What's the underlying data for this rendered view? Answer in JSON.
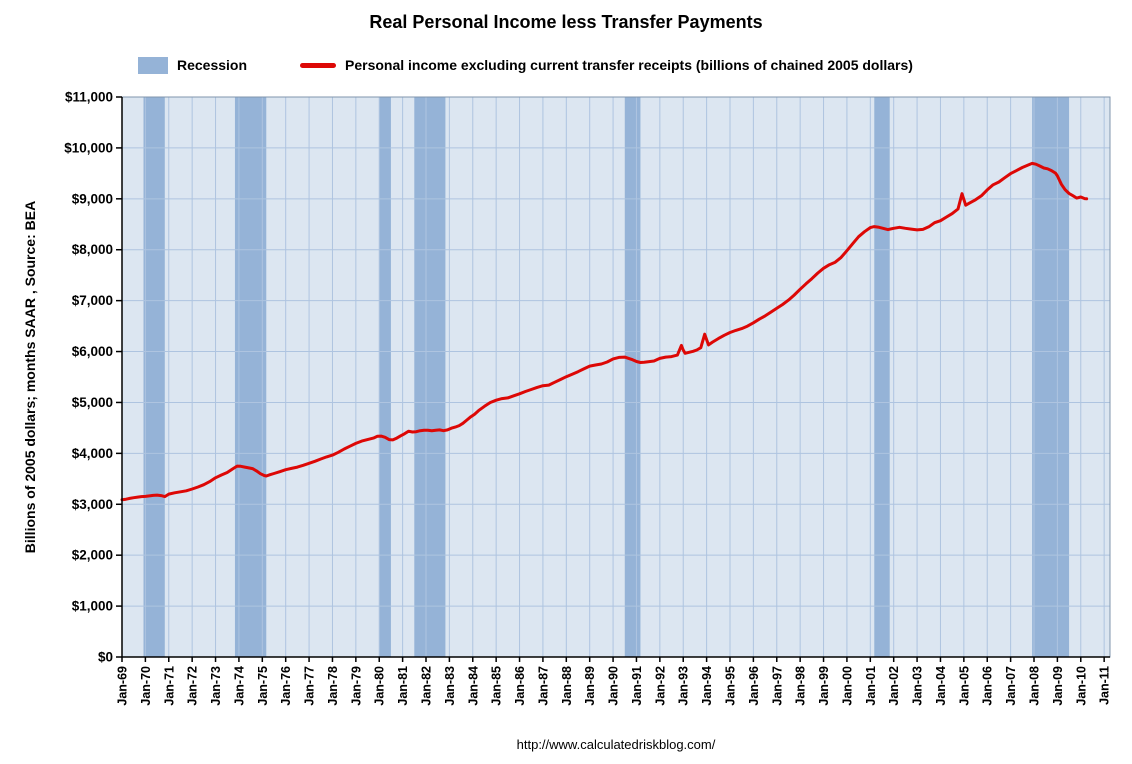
{
  "chart_data": {
    "type": "line",
    "title": "Real Personal Income less Transfer Payments",
    "xlabel": "",
    "ylabel": "Billions of 2005 dollars; months SAAR , Source: BEA",
    "footer_url": "http://www.calculatedriskblog.com/",
    "xlim": [
      1969,
      2011.25
    ],
    "ylim": [
      0,
      11000
    ],
    "grid": true,
    "legend_position": "top",
    "colors": {
      "plot_bg": "#dce6f1",
      "grid": "#aec4e0",
      "recession": "#95b3d7",
      "border": "#8096ad",
      "axis": "#000000",
      "line": "#dd0806"
    },
    "legend": [
      {
        "label": "Recession",
        "swatch": "area",
        "color": "#95b3d7"
      },
      {
        "label": "Personal income excluding current transfer receipts (billions of chained 2005 dollars)",
        "swatch": "line",
        "color": "#dd0806"
      }
    ],
    "y_ticks": [
      [
        0,
        "$0"
      ],
      [
        1000,
        "$1,000"
      ],
      [
        2000,
        "$2,000"
      ],
      [
        3000,
        "$3,000"
      ],
      [
        4000,
        "$4,000"
      ],
      [
        5000,
        "$5,000"
      ],
      [
        6000,
        "$6,000"
      ],
      [
        7000,
        "$7,000"
      ],
      [
        8000,
        "$8,000"
      ],
      [
        9000,
        "$9,000"
      ],
      [
        10000,
        "$10,000"
      ],
      [
        11000,
        "$11,000"
      ]
    ],
    "x_ticks": [
      [
        1969,
        "Jan-69"
      ],
      [
        1970,
        "Jan-70"
      ],
      [
        1971,
        "Jan-71"
      ],
      [
        1972,
        "Jan-72"
      ],
      [
        1973,
        "Jan-73"
      ],
      [
        1974,
        "Jan-74"
      ],
      [
        1975,
        "Jan-75"
      ],
      [
        1976,
        "Jan-76"
      ],
      [
        1977,
        "Jan-77"
      ],
      [
        1978,
        "Jan-78"
      ],
      [
        1979,
        "Jan-79"
      ],
      [
        1980,
        "Jan-80"
      ],
      [
        1981,
        "Jan-81"
      ],
      [
        1982,
        "Jan-82"
      ],
      [
        1983,
        "Jan-83"
      ],
      [
        1984,
        "Jan-84"
      ],
      [
        1985,
        "Jan-85"
      ],
      [
        1986,
        "Jan-86"
      ],
      [
        1987,
        "Jan-87"
      ],
      [
        1988,
        "Jan-88"
      ],
      [
        1989,
        "Jan-89"
      ],
      [
        1990,
        "Jan-90"
      ],
      [
        1991,
        "Jan-91"
      ],
      [
        1992,
        "Jan-92"
      ],
      [
        1993,
        "Jan-93"
      ],
      [
        1994,
        "Jan-94"
      ],
      [
        1995,
        "Jan-95"
      ],
      [
        1996,
        "Jan-96"
      ],
      [
        1997,
        "Jan-97"
      ],
      [
        1998,
        "Jan-98"
      ],
      [
        1999,
        "Jan-99"
      ],
      [
        2000,
        "Jan-00"
      ],
      [
        2001,
        "Jan-01"
      ],
      [
        2002,
        "Jan-02"
      ],
      [
        2003,
        "Jan-03"
      ],
      [
        2004,
        "Jan-04"
      ],
      [
        2005,
        "Jan-05"
      ],
      [
        2006,
        "Jan-06"
      ],
      [
        2007,
        "Jan-07"
      ],
      [
        2008,
        "Jan-08"
      ],
      [
        2009,
        "Jan-09"
      ],
      [
        2010,
        "Jan-10"
      ],
      [
        2011,
        "Jan-11"
      ]
    ],
    "recessions": [
      [
        1969.92,
        1970.83
      ],
      [
        1973.83,
        1975.17
      ],
      [
        1980.0,
        1980.5
      ],
      [
        1981.5,
        1982.83
      ],
      [
        1990.5,
        1991.17
      ],
      [
        2001.17,
        2001.83
      ],
      [
        2007.92,
        2009.5
      ]
    ],
    "series": [
      {
        "name": "Personal income excluding current transfer receipts (billions of chained 2005 dollars)",
        "color": "#dd0806",
        "points": [
          [
            1969.0,
            3090
          ],
          [
            1969.17,
            3100
          ],
          [
            1969.33,
            3115
          ],
          [
            1969.5,
            3130
          ],
          [
            1969.67,
            3140
          ],
          [
            1969.83,
            3150
          ],
          [
            1970.0,
            3155
          ],
          [
            1970.17,
            3165
          ],
          [
            1970.33,
            3175
          ],
          [
            1970.5,
            3180
          ],
          [
            1970.67,
            3170
          ],
          [
            1970.83,
            3150
          ],
          [
            1971.0,
            3200
          ],
          [
            1971.25,
            3225
          ],
          [
            1971.5,
            3245
          ],
          [
            1971.75,
            3265
          ],
          [
            1972.0,
            3300
          ],
          [
            1972.25,
            3340
          ],
          [
            1972.5,
            3385
          ],
          [
            1972.75,
            3445
          ],
          [
            1973.0,
            3520
          ],
          [
            1973.25,
            3575
          ],
          [
            1973.5,
            3625
          ],
          [
            1973.75,
            3700
          ],
          [
            1973.92,
            3750
          ],
          [
            1974.08,
            3745
          ],
          [
            1974.25,
            3730
          ],
          [
            1974.42,
            3715
          ],
          [
            1974.58,
            3700
          ],
          [
            1974.75,
            3655
          ],
          [
            1974.92,
            3600
          ],
          [
            1975.08,
            3565
          ],
          [
            1975.17,
            3555
          ],
          [
            1975.33,
            3580
          ],
          [
            1975.5,
            3605
          ],
          [
            1975.75,
            3640
          ],
          [
            1976.0,
            3680
          ],
          [
            1976.25,
            3705
          ],
          [
            1976.5,
            3730
          ],
          [
            1976.75,
            3765
          ],
          [
            1977.0,
            3805
          ],
          [
            1977.25,
            3845
          ],
          [
            1977.5,
            3890
          ],
          [
            1977.75,
            3930
          ],
          [
            1978.0,
            3965
          ],
          [
            1978.25,
            4020
          ],
          [
            1978.5,
            4085
          ],
          [
            1978.75,
            4140
          ],
          [
            1979.0,
            4195
          ],
          [
            1979.25,
            4240
          ],
          [
            1979.5,
            4270
          ],
          [
            1979.75,
            4300
          ],
          [
            1979.92,
            4335
          ],
          [
            1980.08,
            4340
          ],
          [
            1980.25,
            4315
          ],
          [
            1980.42,
            4270
          ],
          [
            1980.58,
            4265
          ],
          [
            1980.75,
            4300
          ],
          [
            1980.92,
            4345
          ],
          [
            1981.08,
            4385
          ],
          [
            1981.25,
            4435
          ],
          [
            1981.42,
            4420
          ],
          [
            1981.58,
            4425
          ],
          [
            1981.75,
            4445
          ],
          [
            1981.92,
            4455
          ],
          [
            1982.08,
            4455
          ],
          [
            1982.25,
            4445
          ],
          [
            1982.42,
            4455
          ],
          [
            1982.58,
            4460
          ],
          [
            1982.75,
            4445
          ],
          [
            1982.92,
            4460
          ],
          [
            1983.08,
            4495
          ],
          [
            1983.25,
            4515
          ],
          [
            1983.42,
            4545
          ],
          [
            1983.58,
            4590
          ],
          [
            1983.75,
            4655
          ],
          [
            1983.92,
            4720
          ],
          [
            1984.08,
            4770
          ],
          [
            1984.25,
            4840
          ],
          [
            1984.5,
            4925
          ],
          [
            1984.75,
            5000
          ],
          [
            1985.0,
            5045
          ],
          [
            1985.25,
            5075
          ],
          [
            1985.5,
            5090
          ],
          [
            1985.75,
            5130
          ],
          [
            1986.0,
            5170
          ],
          [
            1986.25,
            5215
          ],
          [
            1986.5,
            5255
          ],
          [
            1986.75,
            5295
          ],
          [
            1987.0,
            5330
          ],
          [
            1987.25,
            5340
          ],
          [
            1987.5,
            5395
          ],
          [
            1987.75,
            5450
          ],
          [
            1988.0,
            5505
          ],
          [
            1988.25,
            5555
          ],
          [
            1988.5,
            5605
          ],
          [
            1988.75,
            5660
          ],
          [
            1989.0,
            5715
          ],
          [
            1989.25,
            5735
          ],
          [
            1989.5,
            5755
          ],
          [
            1989.75,
            5795
          ],
          [
            1990.0,
            5855
          ],
          [
            1990.25,
            5885
          ],
          [
            1990.5,
            5890
          ],
          [
            1990.67,
            5865
          ],
          [
            1990.83,
            5840
          ],
          [
            1991.0,
            5805
          ],
          [
            1991.17,
            5785
          ],
          [
            1991.33,
            5790
          ],
          [
            1991.5,
            5800
          ],
          [
            1991.75,
            5815
          ],
          [
            1992.0,
            5865
          ],
          [
            1992.25,
            5890
          ],
          [
            1992.5,
            5900
          ],
          [
            1992.75,
            5930
          ],
          [
            1992.92,
            6120
          ],
          [
            1993.0,
            6030
          ],
          [
            1993.08,
            5965
          ],
          [
            1993.25,
            5985
          ],
          [
            1993.42,
            6005
          ],
          [
            1993.58,
            6030
          ],
          [
            1993.75,
            6075
          ],
          [
            1993.92,
            6340
          ],
          [
            1994.08,
            6130
          ],
          [
            1994.25,
            6185
          ],
          [
            1994.5,
            6255
          ],
          [
            1994.75,
            6320
          ],
          [
            1995.0,
            6375
          ],
          [
            1995.25,
            6415
          ],
          [
            1995.5,
            6450
          ],
          [
            1995.75,
            6500
          ],
          [
            1996.0,
            6565
          ],
          [
            1996.25,
            6635
          ],
          [
            1996.5,
            6700
          ],
          [
            1996.75,
            6775
          ],
          [
            1997.0,
            6850
          ],
          [
            1997.25,
            6925
          ],
          [
            1997.5,
            7010
          ],
          [
            1997.75,
            7110
          ],
          [
            1998.0,
            7225
          ],
          [
            1998.25,
            7330
          ],
          [
            1998.5,
            7430
          ],
          [
            1998.75,
            7540
          ],
          [
            1999.0,
            7635
          ],
          [
            1999.25,
            7705
          ],
          [
            1999.5,
            7755
          ],
          [
            1999.75,
            7850
          ],
          [
            2000.0,
            7980
          ],
          [
            2000.25,
            8120
          ],
          [
            2000.5,
            8255
          ],
          [
            2000.75,
            8355
          ],
          [
            2001.0,
            8435
          ],
          [
            2001.17,
            8455
          ],
          [
            2001.33,
            8445
          ],
          [
            2001.5,
            8425
          ],
          [
            2001.75,
            8395
          ],
          [
            2002.0,
            8420
          ],
          [
            2002.25,
            8440
          ],
          [
            2002.5,
            8420
          ],
          [
            2002.75,
            8405
          ],
          [
            2003.0,
            8390
          ],
          [
            2003.25,
            8400
          ],
          [
            2003.5,
            8450
          ],
          [
            2003.75,
            8530
          ],
          [
            2004.0,
            8570
          ],
          [
            2004.25,
            8640
          ],
          [
            2004.5,
            8710
          ],
          [
            2004.75,
            8800
          ],
          [
            2004.92,
            9100
          ],
          [
            2005.08,
            8875
          ],
          [
            2005.25,
            8920
          ],
          [
            2005.5,
            8980
          ],
          [
            2005.75,
            9060
          ],
          [
            2006.0,
            9175
          ],
          [
            2006.25,
            9275
          ],
          [
            2006.5,
            9330
          ],
          [
            2006.75,
            9415
          ],
          [
            2007.0,
            9495
          ],
          [
            2007.25,
            9555
          ],
          [
            2007.5,
            9615
          ],
          [
            2007.75,
            9665
          ],
          [
            2007.92,
            9695
          ],
          [
            2008.08,
            9680
          ],
          [
            2008.25,
            9645
          ],
          [
            2008.42,
            9605
          ],
          [
            2008.58,
            9590
          ],
          [
            2008.75,
            9555
          ],
          [
            2008.92,
            9505
          ],
          [
            2009.0,
            9450
          ],
          [
            2009.17,
            9285
          ],
          [
            2009.33,
            9180
          ],
          [
            2009.5,
            9105
          ],
          [
            2009.67,
            9060
          ],
          [
            2009.83,
            9015
          ],
          [
            2010.0,
            9035
          ],
          [
            2010.17,
            9005
          ],
          [
            2010.25,
            9000
          ]
        ]
      }
    ]
  }
}
